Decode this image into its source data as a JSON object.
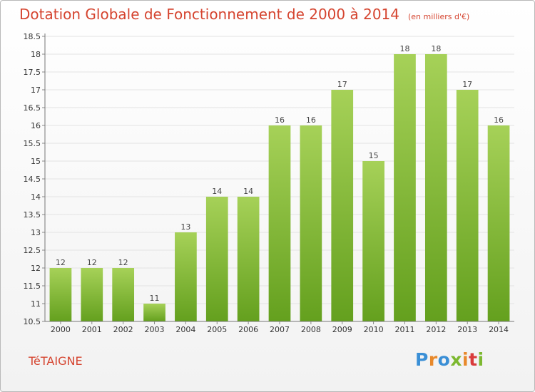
{
  "header": {
    "title": "Dotation Globale de Fonctionnement de 2000 à 2014",
    "subtitle": "(en milliers d'€)"
  },
  "footer": {
    "commune": "TéTAIGNE",
    "brand_letters": [
      "P",
      "r",
      "o",
      "x",
      "i",
      "t",
      "i"
    ],
    "brand_colors": [
      "#3a8fd6",
      "#e8892b",
      "#3a8fd6",
      "#7cb82f",
      "#e8892b",
      "#d93b3b",
      "#7cb82f"
    ]
  },
  "chart_data": {
    "type": "bar",
    "title": "Dotation Globale de Fonctionnement de 2000 à 2014",
    "subtitle": "(en milliers d'€)",
    "xlabel": "",
    "ylabel": "",
    "categories": [
      "2000",
      "2001",
      "2002",
      "2003",
      "2004",
      "2005",
      "2006",
      "2007",
      "2008",
      "2009",
      "2010",
      "2011",
      "2012",
      "2013",
      "2014"
    ],
    "values": [
      12,
      12,
      12,
      11,
      13,
      14,
      14,
      16,
      16,
      17,
      15,
      18,
      18,
      17,
      16
    ],
    "data_labels": [
      "12",
      "12",
      "12",
      "11",
      "13",
      "14",
      "14",
      "16",
      "16",
      "17",
      "15",
      "18",
      "18",
      "17",
      "16"
    ],
    "ylim": [
      10.5,
      18.5
    ],
    "yticks": [
      "10.5",
      "11",
      "11.5",
      "12",
      "12.5",
      "13",
      "13.5",
      "14",
      "14.5",
      "15",
      "15.5",
      "16",
      "16.5",
      "17",
      "17.5",
      "18",
      "18.5"
    ],
    "grid": true,
    "bar_color": "#7cb82f",
    "bar_color_light": "#a6d158"
  }
}
